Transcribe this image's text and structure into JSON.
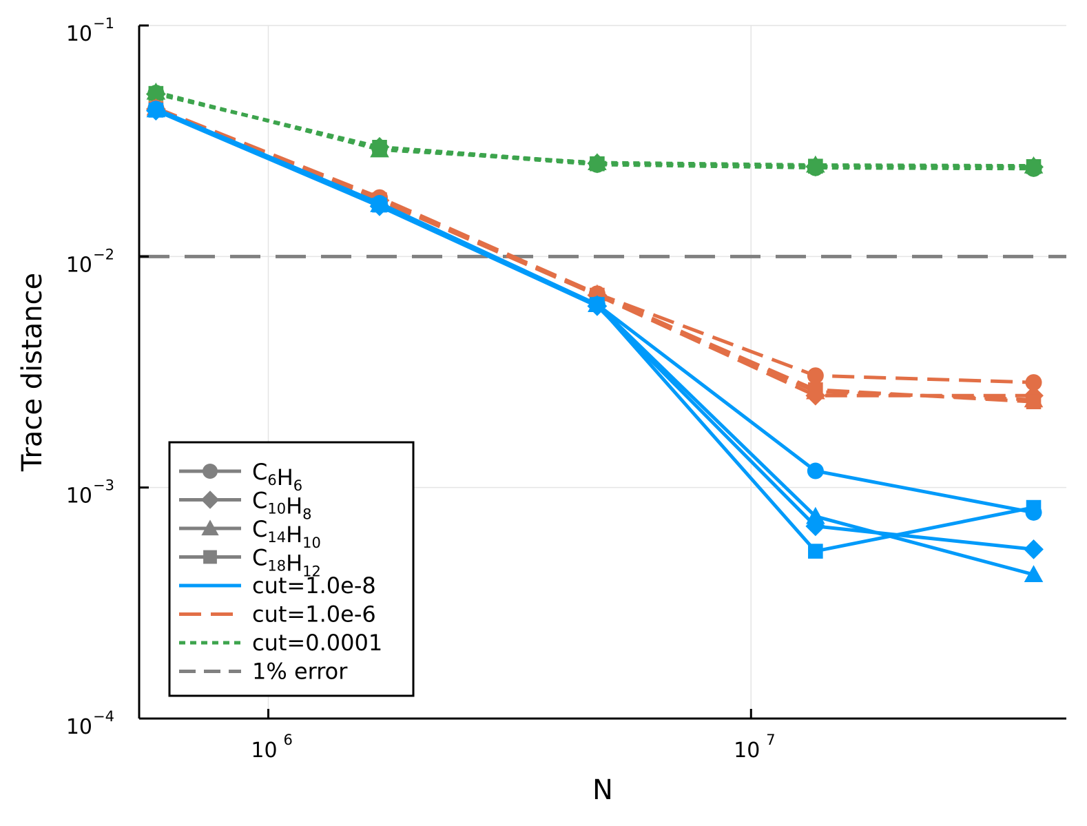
{
  "chart_data": {
    "type": "line",
    "title": "",
    "xlabel": "N",
    "ylabel": "Trace distance",
    "xscale": "log",
    "yscale": "log",
    "xlim": [
      540000,
      45000000
    ],
    "ylim": [
      0.0001,
      0.1
    ],
    "grid": true,
    "legend_position": "bottom-left",
    "x_ticks": [
      {
        "value": 1000000,
        "base": "10",
        "exp": "6"
      },
      {
        "value": 10000000,
        "base": "10",
        "exp": "7"
      }
    ],
    "y_ticks": [
      {
        "value": 0.1,
        "base": "10",
        "exp": "−1"
      },
      {
        "value": 0.01,
        "base": "10",
        "exp": "−2"
      },
      {
        "value": 0.001,
        "base": "10",
        "exp": "−3"
      },
      {
        "value": 0.0001,
        "base": "10",
        "exp": "−4"
      }
    ],
    "x": [
      585000,
      1700000,
      4800000,
      13600000,
      38500000
    ],
    "cutoffs": [
      {
        "label": "cut=1.0e-8",
        "color": "#009AFA",
        "dash": "solid"
      },
      {
        "label": "cut=1.0e-6",
        "color": "#E26F46",
        "dash": "dash"
      },
      {
        "label": "cut=0.0001",
        "color": "#3DA44D",
        "dash": "dot"
      }
    ],
    "molecules": [
      {
        "label": "C6H6",
        "parts": [
          [
            "C",
            "6"
          ],
          [
            "H",
            "6"
          ]
        ],
        "marker": "circle"
      },
      {
        "label": "C10H8",
        "parts": [
          [
            "C",
            "10"
          ],
          [
            "H",
            "8"
          ]
        ],
        "marker": "diamond"
      },
      {
        "label": "C14H10",
        "parts": [
          [
            "C",
            "14"
          ],
          [
            "H",
            "10"
          ]
        ],
        "marker": "triangle"
      },
      {
        "label": "C18H12",
        "parts": [
          [
            "C",
            "18"
          ],
          [
            "H",
            "12"
          ]
        ],
        "marker": "square"
      }
    ],
    "series": [
      {
        "cut": 0,
        "molecule": 0,
        "values": [
          0.0435,
          0.017,
          0.0062,
          0.00118,
          0.00078
        ]
      },
      {
        "cut": 0,
        "molecule": 1,
        "values": [
          0.0428,
          0.0165,
          0.0061,
          0.00068,
          0.00054
        ]
      },
      {
        "cut": 0,
        "molecule": 2,
        "values": [
          0.0432,
          0.0168,
          0.0062,
          0.00075,
          0.00042
        ]
      },
      {
        "cut": 0,
        "molecule": 3,
        "values": [
          0.043,
          0.0167,
          0.0062,
          0.00053,
          0.00082
        ]
      },
      {
        "cut": 1,
        "molecule": 0,
        "values": [
          0.044,
          0.018,
          0.0069,
          0.00305,
          0.00285
        ]
      },
      {
        "cut": 1,
        "molecule": 1,
        "values": [
          0.0435,
          0.0175,
          0.0068,
          0.0025,
          0.0025
        ]
      },
      {
        "cut": 1,
        "molecule": 2,
        "values": [
          0.044,
          0.0178,
          0.0069,
          0.0026,
          0.0024
        ]
      },
      {
        "cut": 1,
        "molecule": 3,
        "values": [
          0.0437,
          0.0176,
          0.0068,
          0.00265,
          0.00235
        ]
      },
      {
        "cut": 2,
        "molecule": 0,
        "values": [
          0.051,
          0.0295,
          0.025,
          0.0242,
          0.024
        ]
      },
      {
        "cut": 2,
        "molecule": 1,
        "values": [
          0.0505,
          0.0298,
          0.0253,
          0.0245,
          0.0244
        ]
      },
      {
        "cut": 2,
        "molecule": 2,
        "values": [
          0.0515,
          0.029,
          0.0255,
          0.0249,
          0.0247
        ]
      },
      {
        "cut": 2,
        "molecule": 3,
        "values": [
          0.0508,
          0.0297,
          0.0252,
          0.0246,
          0.0245
        ]
      }
    ],
    "reference_line": {
      "label": "1% error",
      "y": 0.01,
      "color": "#808080",
      "dash": "long-dash"
    },
    "legend_marker_color": "#808080"
  }
}
